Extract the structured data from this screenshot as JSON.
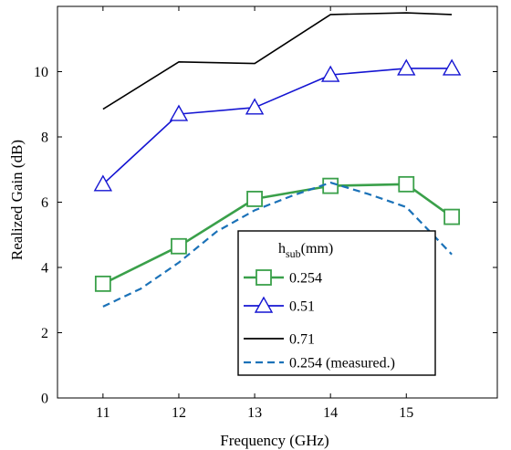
{
  "chart_data": {
    "type": "line",
    "xlabel": "Frequency (GHz)",
    "ylabel": "Realized Gain (dB)",
    "xlim": [
      10.4,
      16.2
    ],
    "ylim": [
      0,
      12.0
    ],
    "xticks": [
      "11",
      "12",
      "13",
      "14",
      "15"
    ],
    "yticks": [
      "0",
      "2",
      "4",
      "6",
      "8",
      "10"
    ],
    "grid": false,
    "legend_position": "lower-right",
    "legend_title_main": "h",
    "legend_title_sub": "sub",
    "legend_title_unit": "(mm)",
    "series": [
      {
        "name": "0.254",
        "color": "#3aa04a",
        "line_style": "solid",
        "marker": "square",
        "x": [
          11,
          12,
          13,
          14,
          15,
          15.6
        ],
        "y": [
          3.5,
          4.65,
          6.1,
          6.5,
          6.55,
          5.55
        ]
      },
      {
        "name": "0.51",
        "color": "#1414d2",
        "line_style": "solid",
        "marker": "triangle",
        "x": [
          11,
          12,
          13,
          14,
          15,
          15.6
        ],
        "y": [
          6.55,
          8.7,
          8.9,
          9.9,
          10.1,
          10.1
        ]
      },
      {
        "name": "0.71",
        "color": "#000000",
        "line_style": "solid",
        "marker": "none",
        "x": [
          11,
          12,
          13,
          14,
          15,
          15.6
        ],
        "y": [
          8.85,
          10.3,
          10.25,
          11.75,
          11.8,
          11.75
        ]
      },
      {
        "name": "0.254 (measured.)",
        "color": "#1b72b8",
        "line_style": "dashed",
        "marker": "none",
        "x": [
          11,
          11.5,
          12,
          12.5,
          13,
          13.5,
          14,
          14.5,
          15,
          15.6
        ],
        "y": [
          2.8,
          3.35,
          4.15,
          5.1,
          5.75,
          6.2,
          6.6,
          6.25,
          5.85,
          4.4
        ]
      }
    ]
  }
}
